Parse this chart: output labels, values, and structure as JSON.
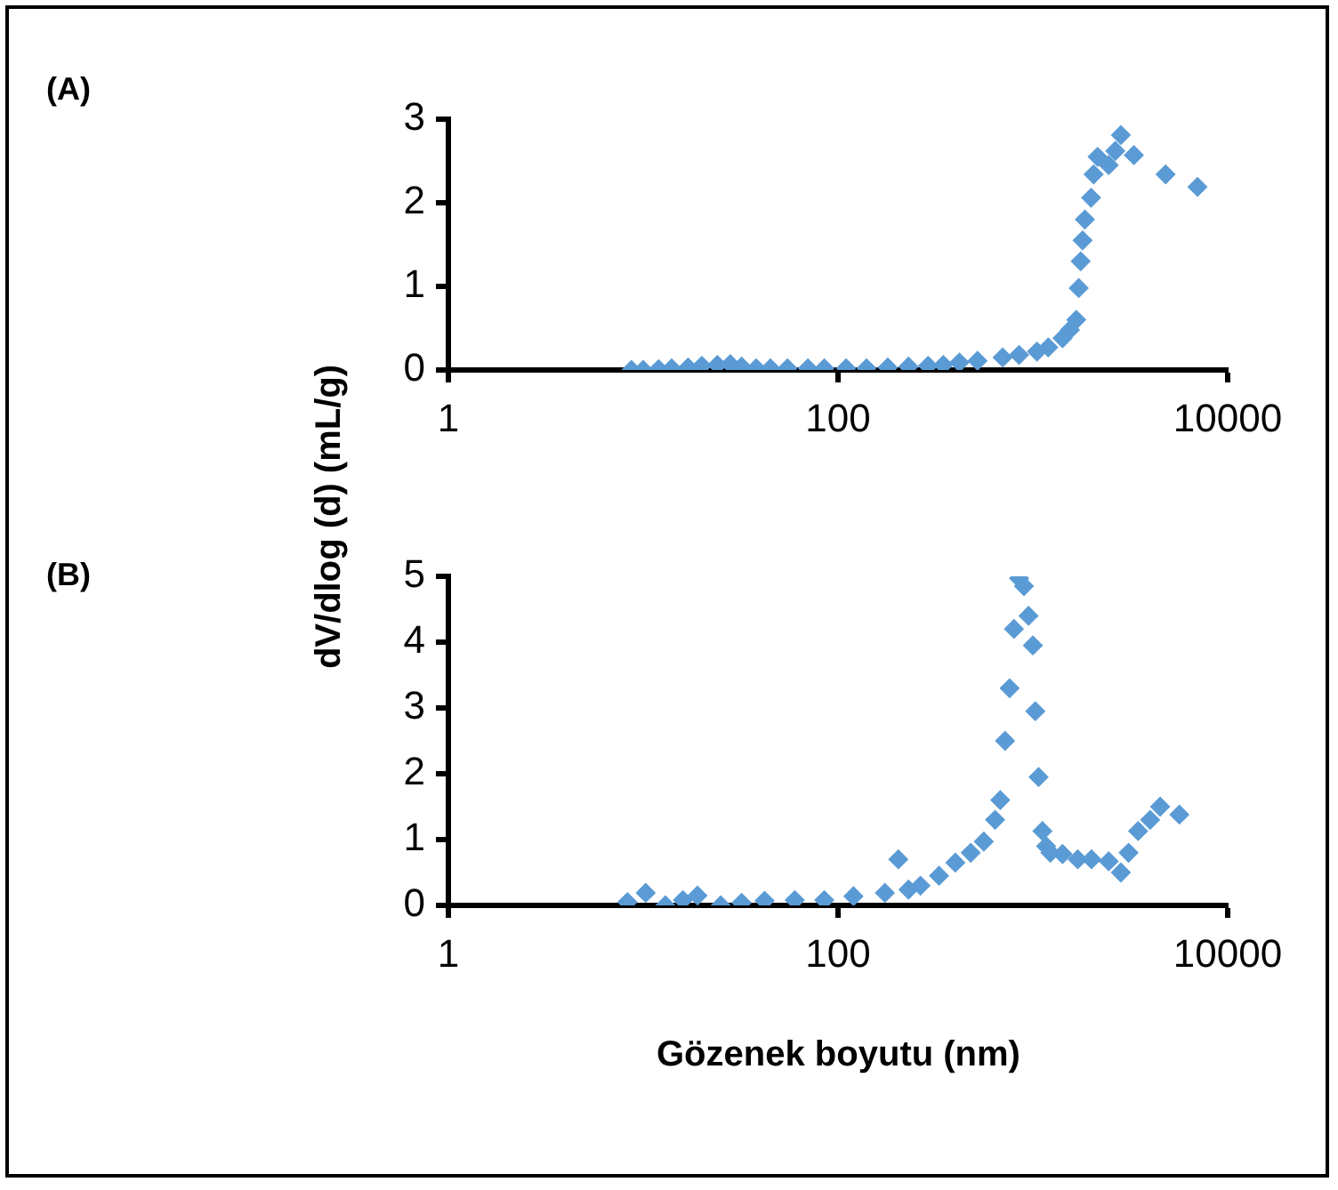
{
  "chart_data": [
    {
      "type": "scatter",
      "annotations": [
        "(A)"
      ],
      "ylabel": "dV/dlog (d) (mL/g)",
      "log": "x",
      "marker": "diamond",
      "grid": false,
      "legend": false,
      "xlim": [
        1,
        10000
      ],
      "xticks": [
        1,
        100,
        10000
      ],
      "ylim": [
        0,
        3
      ],
      "yticks": [
        0,
        1,
        2,
        3
      ],
      "series": [
        {
          "color": "#5b9bd5",
          "x": [
            8.7,
            10,
            12,
            14,
            17,
            20,
            24,
            28,
            32,
            38,
            45,
            55,
            70,
            85,
            110,
            140,
            180,
            230,
            290,
            347,
            420,
            520,
            700,
            850,
            1050,
            1200,
            1420,
            1550,
            1670,
            1720,
            1760,
            1800,
            1850,
            1990,
            2050,
            2150,
            2450,
            2650,
            2830,
            3300,
            4800,
            7000
          ],
          "values": [
            0.0,
            0.0,
            0.01,
            0.02,
            0.03,
            0.05,
            0.06,
            0.07,
            0.04,
            0.02,
            0.02,
            0.02,
            0.02,
            0.02,
            0.02,
            0.02,
            0.03,
            0.04,
            0.05,
            0.06,
            0.09,
            0.11,
            0.15,
            0.18,
            0.22,
            0.27,
            0.38,
            0.48,
            0.6,
            0.98,
            1.3,
            1.55,
            1.8,
            2.06,
            2.34,
            2.55,
            2.45,
            2.62,
            2.81,
            2.57,
            2.34,
            2.19
          ]
        }
      ]
    },
    {
      "type": "scatter",
      "annotations": [
        "(B)"
      ],
      "xlabel": "Gözenek boyutu (nm)",
      "log": "x",
      "marker": "diamond",
      "grid": false,
      "legend": false,
      "xlim": [
        1,
        10000
      ],
      "xticks": [
        1,
        100,
        10000
      ],
      "ylim": [
        0,
        5
      ],
      "yticks": [
        0,
        1,
        2,
        3,
        4,
        5
      ],
      "series": [
        {
          "color": "#5b9bd5",
          "x": [
            8.3,
            10.3,
            13,
            16,
            19,
            25,
            32,
            42,
            60,
            85,
            120,
            174,
            204,
            230,
            265,
            330,
            400,
            480,
            560,
            640,
            680,
            720,
            760,
            800,
            850,
            900,
            950,
            1000,
            1030,
            1070,
            1120,
            1170,
            1230,
            1420,
            1700,
            2000,
            2450,
            2830,
            3100,
            3470,
            4000,
            4500,
            5650
          ],
          "values": [
            0.05,
            0.19,
            0.0,
            0.08,
            0.15,
            0.0,
            0.04,
            0.07,
            0.08,
            0.08,
            0.14,
            0.19,
            0.7,
            0.24,
            0.3,
            0.45,
            0.65,
            0.8,
            0.97,
            1.3,
            1.6,
            2.5,
            3.3,
            4.2,
            4.97,
            4.85,
            4.4,
            3.95,
            2.95,
            1.95,
            1.13,
            0.9,
            0.8,
            0.78,
            0.7,
            0.7,
            0.67,
            0.5,
            0.8,
            1.13,
            1.3,
            1.5,
            1.38
          ]
        }
      ]
    }
  ]
}
